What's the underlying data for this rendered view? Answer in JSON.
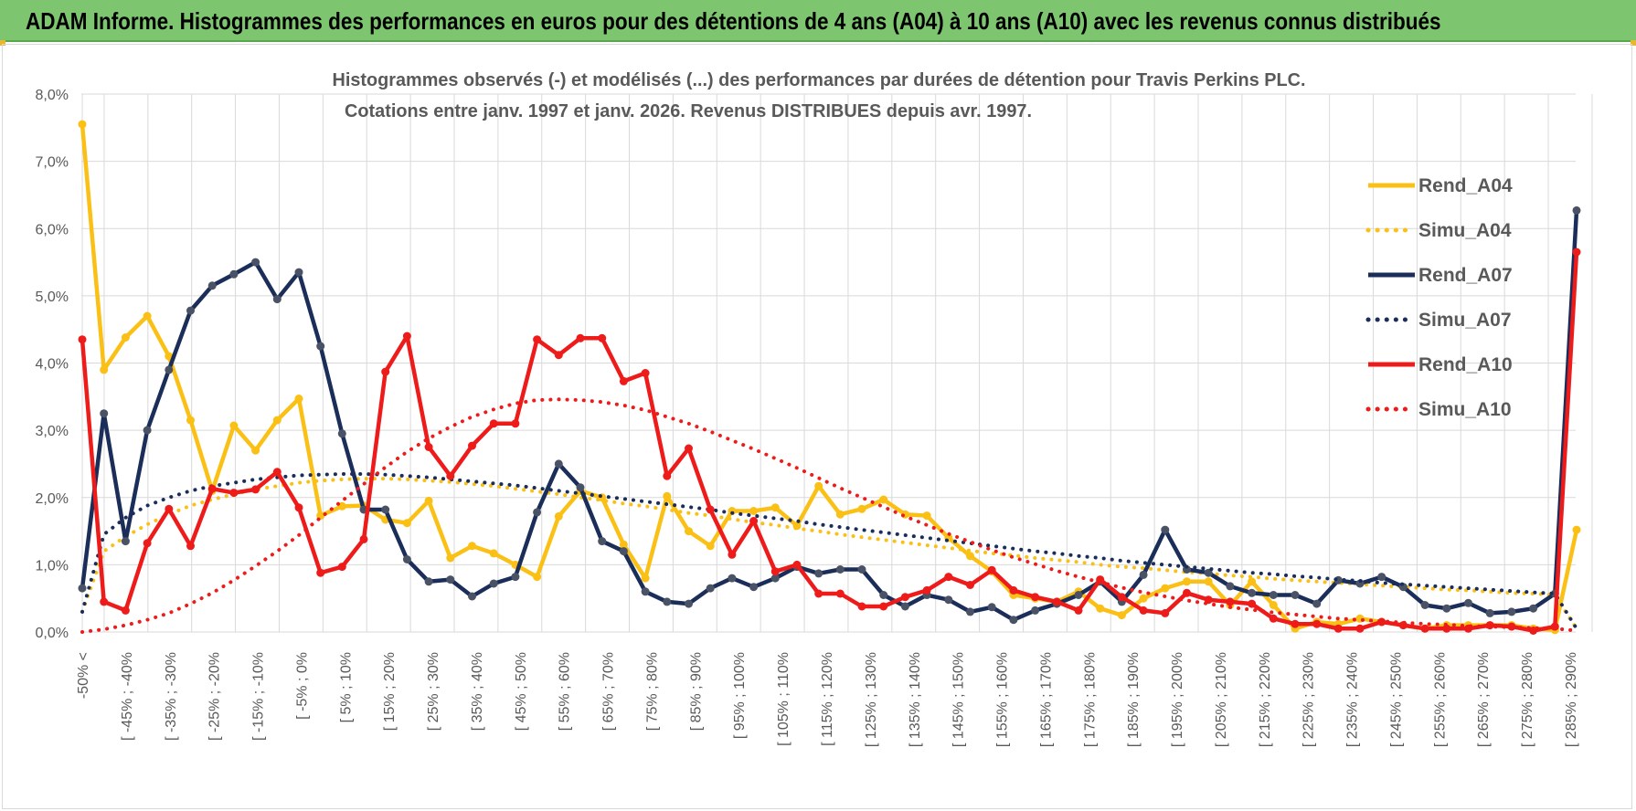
{
  "header": {
    "title": "ADAM Informe. Histogrammes des performances en euros pour des détentions de 4 ans (A04) à 10 ans (A10) avec les revenus connus distribués"
  },
  "colors": {
    "a04": "#fbc015",
    "a07": "#1b2e5a",
    "a10": "#ee1b1b",
    "grid": "#d9d9d9",
    "banner": "#7dc66f"
  },
  "chart_data": {
    "type": "line",
    "title_line1": "Histogrammes observés (-) et modélisés (...) des performances par durées de détention pour Travis Perkins PLC.",
    "title_line2": "Cotations entre janv. 1997 et janv. 2026. Revenus DISTRIBUES depuis avr. 1997.",
    "ylim": [
      0,
      8
    ],
    "yticks": [
      "0,0%",
      "1,0%",
      "2,0%",
      "3,0%",
      "4,0%",
      "5,0%",
      "6,0%",
      "7,0%",
      "8,0%"
    ],
    "tick_labels": [
      "-50% <",
      "[ -45% ; -40%",
      "[ -35% ; -30%",
      "[ -25% ; -20%",
      "[ -15% ; -10%",
      "[ -5% ; 0%",
      "[ 5% ; 10%",
      "[ 15% ; 20%",
      "[ 25% ; 30%",
      "[ 35% ; 40%",
      "[ 45% ; 50%",
      "[ 55% ; 60%",
      "[ 65% ; 70%",
      "[ 75% ; 80%",
      "[ 85% ; 90%",
      "[ 95% ; 100%",
      "[ 105% ; 110%",
      "[ 115% ; 120%",
      "[ 125% ; 130%",
      "[ 135% ; 140%",
      "[ 145% ; 150%",
      "[ 155% ; 160%",
      "[ 165% ; 170%",
      "[ 175% ; 180%",
      "[ 185% ; 190%",
      "[ 195% ; 200%",
      "[ 205% ; 210%",
      "[ 215% ; 220%",
      "[ 225% ; 230%",
      "[ 235% ; 240%",
      "[ 245% ; 250%",
      "[ 255% ; 260%",
      "[ 265% ; 270%",
      "[ 275% ; 280%",
      "[ 285% ; 290%"
    ],
    "series": [
      {
        "name": "Rend_A04",
        "style": "solid",
        "color": "#fbc015",
        "values": [
          7.55,
          3.9,
          4.38,
          4.7,
          4.1,
          3.15,
          2.1,
          3.07,
          2.7,
          3.15,
          3.47,
          1.73,
          1.87,
          1.88,
          1.67,
          1.62,
          1.95,
          1.1,
          1.28,
          1.17,
          1.0,
          0.82,
          1.72,
          2.1,
          2.0,
          1.3,
          0.8,
          2.02,
          1.5,
          1.28,
          1.8,
          1.8,
          1.85,
          1.58,
          2.17,
          1.75,
          1.83,
          1.97,
          1.75,
          1.73,
          1.4,
          1.13,
          0.9,
          0.55,
          0.5,
          0.45,
          0.6,
          0.35,
          0.25,
          0.5,
          0.65,
          0.75,
          0.75,
          0.4,
          0.75,
          0.4,
          0.05,
          0.15,
          0.12,
          0.2,
          0.15,
          0.1,
          0.05,
          0.1,
          0.1,
          0.1,
          0.1,
          0.05,
          0.03,
          1.52
        ]
      },
      {
        "name": "Simu_A04",
        "style": "dotted",
        "color": "#fbc015",
        "values": [
          0.3,
          1.2,
          1.42,
          1.6,
          1.75,
          1.88,
          1.97,
          2.05,
          2.12,
          2.17,
          2.22,
          2.25,
          2.27,
          2.28,
          2.28,
          2.27,
          2.25,
          2.23,
          2.2,
          2.17,
          2.13,
          2.09,
          2.05,
          2.0,
          1.96,
          1.91,
          1.87,
          1.82,
          1.77,
          1.73,
          1.68,
          1.63,
          1.59,
          1.54,
          1.5,
          1.45,
          1.41,
          1.37,
          1.33,
          1.29,
          1.25,
          1.21,
          1.17,
          1.14,
          1.1,
          1.07,
          1.04,
          1.0,
          0.97,
          0.95,
          0.92,
          0.89,
          0.87,
          0.84,
          0.82,
          0.79,
          0.77,
          0.75,
          0.73,
          0.71,
          0.69,
          0.67,
          0.65,
          0.63,
          0.62,
          0.6,
          0.58,
          0.57,
          0.55,
          0.05
        ]
      },
      {
        "name": "Rend_A07",
        "style": "solid",
        "color": "#1b2e5a",
        "values": [
          0.65,
          3.25,
          1.35,
          3.0,
          3.9,
          4.78,
          5.15,
          5.32,
          5.5,
          4.95,
          5.35,
          4.25,
          2.95,
          1.82,
          1.82,
          1.08,
          0.75,
          0.78,
          0.53,
          0.72,
          0.82,
          1.78,
          2.5,
          2.15,
          1.35,
          1.2,
          0.6,
          0.45,
          0.42,
          0.65,
          0.8,
          0.67,
          0.8,
          0.97,
          0.87,
          0.93,
          0.93,
          0.55,
          0.38,
          0.55,
          0.48,
          0.3,
          0.37,
          0.18,
          0.32,
          0.42,
          0.55,
          0.75,
          0.45,
          0.85,
          1.52,
          0.93,
          0.88,
          0.68,
          0.58,
          0.55,
          0.55,
          0.42,
          0.77,
          0.72,
          0.82,
          0.67,
          0.4,
          0.35,
          0.43,
          0.28,
          0.3,
          0.35,
          0.57,
          6.27
        ]
      },
      {
        "name": "Simu_A07",
        "style": "dotted",
        "color": "#1b2e5a",
        "values": [
          0.3,
          1.45,
          1.7,
          1.88,
          2.0,
          2.1,
          2.17,
          2.22,
          2.27,
          2.3,
          2.33,
          2.34,
          2.35,
          2.35,
          2.34,
          2.32,
          2.3,
          2.27,
          2.24,
          2.21,
          2.18,
          2.14,
          2.1,
          2.06,
          2.02,
          1.98,
          1.94,
          1.9,
          1.86,
          1.82,
          1.77,
          1.73,
          1.69,
          1.65,
          1.6,
          1.56,
          1.52,
          1.48,
          1.44,
          1.4,
          1.36,
          1.32,
          1.28,
          1.24,
          1.2,
          1.17,
          1.13,
          1.1,
          1.06,
          1.03,
          1.0,
          0.97,
          0.94,
          0.91,
          0.88,
          0.86,
          0.83,
          0.81,
          0.78,
          0.76,
          0.73,
          0.71,
          0.69,
          0.67,
          0.65,
          0.63,
          0.61,
          0.59,
          0.57,
          0.05
        ]
      },
      {
        "name": "Rend_A10",
        "style": "solid",
        "color": "#ee1b1b",
        "values": [
          4.35,
          0.45,
          0.32,
          1.32,
          1.83,
          1.28,
          2.13,
          2.07,
          2.12,
          2.38,
          1.85,
          0.88,
          0.97,
          1.38,
          3.87,
          4.4,
          2.75,
          2.32,
          2.77,
          3.1,
          3.1,
          4.35,
          4.12,
          4.37,
          4.37,
          3.73,
          3.85,
          2.32,
          2.73,
          1.82,
          1.15,
          1.65,
          0.9,
          1.0,
          0.57,
          0.57,
          0.38,
          0.38,
          0.52,
          0.62,
          0.82,
          0.7,
          0.92,
          0.62,
          0.52,
          0.45,
          0.32,
          0.78,
          0.52,
          0.32,
          0.28,
          0.58,
          0.48,
          0.45,
          0.42,
          0.2,
          0.12,
          0.12,
          0.05,
          0.05,
          0.15,
          0.1,
          0.05,
          0.05,
          0.05,
          0.1,
          0.08,
          0.02,
          0.08,
          5.65
        ]
      },
      {
        "name": "Simu_A10",
        "style": "dotted",
        "color": "#ee1b1b",
        "values": [
          0.0,
          0.04,
          0.1,
          0.18,
          0.28,
          0.42,
          0.58,
          0.77,
          0.98,
          1.2,
          1.44,
          1.7,
          1.95,
          2.2,
          2.45,
          2.68,
          2.88,
          3.05,
          3.2,
          3.31,
          3.4,
          3.45,
          3.46,
          3.45,
          3.42,
          3.37,
          3.3,
          3.2,
          3.1,
          2.98,
          2.85,
          2.72,
          2.58,
          2.44,
          2.29,
          2.14,
          2.0,
          1.86,
          1.72,
          1.59,
          1.46,
          1.34,
          1.22,
          1.11,
          1.01,
          0.91,
          0.82,
          0.74,
          0.66,
          0.59,
          0.53,
          0.47,
          0.42,
          0.37,
          0.33,
          0.29,
          0.26,
          0.23,
          0.2,
          0.18,
          0.16,
          0.14,
          0.12,
          0.11,
          0.09,
          0.08,
          0.07,
          0.06,
          0.05,
          0.02
        ]
      }
    ],
    "legend": [
      "Rend_A04",
      "Simu_A04",
      "Rend_A07",
      "Simu_A07",
      "Rend_A10",
      "Simu_A10"
    ]
  }
}
